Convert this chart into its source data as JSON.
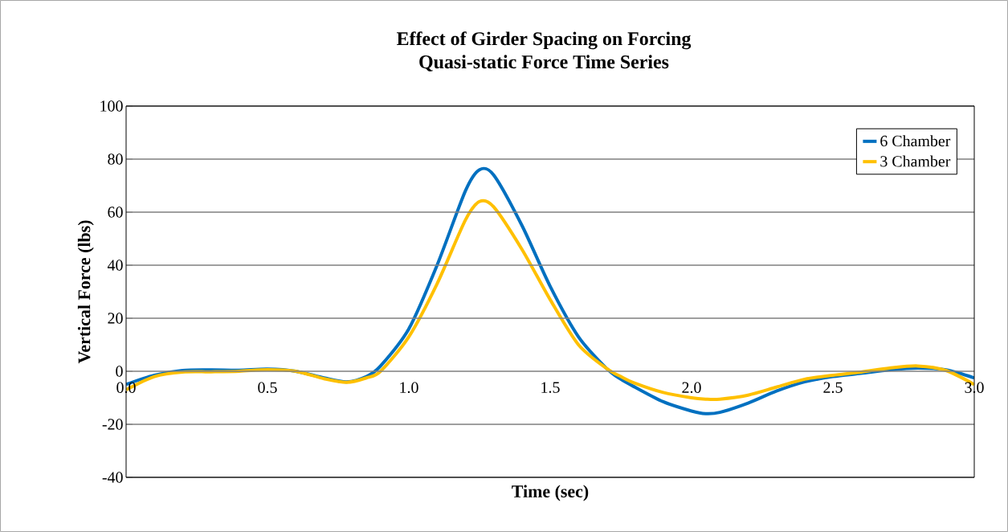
{
  "chart_data": {
    "type": "line",
    "title": "Effect of Girder Spacing on Forcing",
    "subtitle": "Quasi-static Force Time Series",
    "xlabel": "Time (sec)",
    "ylabel": "Vertical Force (lbs)",
    "x": [
      0,
      0.1,
      0.2,
      0.3,
      0.4,
      0.5,
      0.6,
      0.7,
      0.78,
      0.85,
      0.9,
      1.0,
      1.1,
      1.2,
      1.25,
      1.3,
      1.4,
      1.5,
      1.6,
      1.7,
      1.75,
      1.8,
      1.9,
      2.0,
      2.05,
      2.1,
      2.2,
      2.3,
      2.4,
      2.5,
      2.6,
      2.7,
      2.8,
      2.9,
      3.0
    ],
    "series": [
      {
        "name": "6 Chamber",
        "color": "#0070c0",
        "values": [
          -5,
          -1.5,
          0.3,
          0.5,
          0.4,
          0.8,
          0,
          -2.5,
          -4,
          -2,
          2,
          16,
          40,
          68,
          76,
          74,
          55,
          32,
          13,
          1,
          -3,
          -6,
          -11.5,
          -15,
          -16,
          -15.5,
          -12,
          -7.5,
          -4,
          -2,
          -0.8,
          0.5,
          1.2,
          0.5,
          -2.5
        ]
      },
      {
        "name": "3 Chamber",
        "color": "#ffc000",
        "values": [
          -7,
          -2,
          -0.3,
          -0.2,
          0,
          0.6,
          0,
          -2.8,
          -4.2,
          -2.5,
          0,
          13,
          33,
          57,
          64,
          62,
          46,
          27,
          10,
          1,
          -2,
          -4.5,
          -8,
          -10,
          -10.5,
          -10.5,
          -9,
          -6,
          -3,
          -1.5,
          -0.3,
          1.2,
          2,
          0.3,
          -5
        ]
      }
    ],
    "xlim": [
      0,
      3
    ],
    "ylim": [
      -40,
      100
    ],
    "xticks": [
      {
        "value": 0,
        "label": "0.0"
      },
      0.5,
      {
        "value": 1,
        "label": "1.0"
      },
      1.5,
      {
        "value": 2,
        "label": "2.0"
      },
      2.5,
      {
        "value": 3,
        "label": "3.0"
      }
    ],
    "yticks": [
      -40,
      -20,
      0,
      20,
      40,
      60,
      80,
      100
    ],
    "grid": "y",
    "legend": "top right",
    "marker": "none",
    "line_style": "solid"
  }
}
